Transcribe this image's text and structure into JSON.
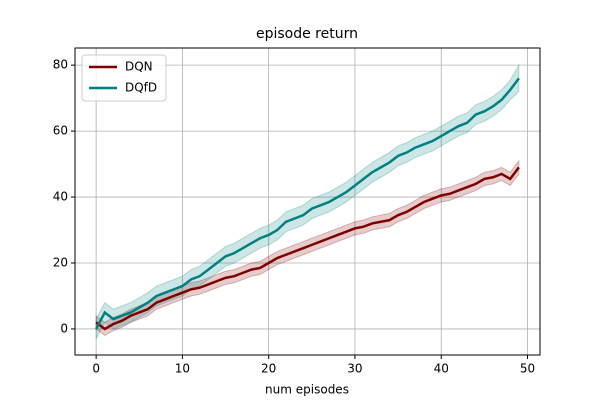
{
  "chart_data": {
    "type": "line",
    "title": "episode return",
    "xlabel": "num episodes",
    "x": [
      0,
      1,
      2,
      3,
      4,
      5,
      6,
      7,
      8,
      9,
      10,
      11,
      12,
      13,
      14,
      15,
      16,
      17,
      18,
      19,
      20,
      21,
      22,
      23,
      24,
      25,
      26,
      27,
      28,
      29,
      30,
      31,
      32,
      33,
      34,
      35,
      36,
      37,
      38,
      39,
      40,
      41,
      42,
      43,
      44,
      45,
      46,
      47,
      48,
      49
    ],
    "series": [
      {
        "name": "DQN",
        "color": "#800000",
        "values": [
          2,
          0,
          1.5,
          2.5,
          4,
          5,
          6,
          8,
          9,
          10,
          11,
          12,
          12.5,
          13.5,
          14.5,
          15.5,
          16,
          17,
          18,
          18.5,
          20,
          21.5,
          22.5,
          23.5,
          24.5,
          25.5,
          26.5,
          27.5,
          28.5,
          29.5,
          30.5,
          31,
          32,
          32.5,
          33,
          34.5,
          35.5,
          37,
          38.5,
          39.5,
          40.5,
          41,
          42,
          43,
          44,
          45.5,
          46,
          47,
          45.5,
          49
        ],
        "lower": [
          0,
          -2,
          -0.5,
          0.5,
          2,
          3,
          4,
          6,
          7,
          8,
          9,
          10,
          10.5,
          11.5,
          12.5,
          13.5,
          14,
          15,
          16,
          16.5,
          18,
          19.5,
          20.5,
          21.5,
          22.5,
          23.5,
          24.5,
          25.5,
          26.5,
          27.5,
          28.5,
          29,
          30,
          30.5,
          31,
          32.5,
          33.5,
          35,
          36.5,
          37.5,
          38.5,
          39,
          40,
          41,
          42,
          43.5,
          44,
          45,
          43.5,
          47
        ],
        "upper": [
          4,
          2,
          3.5,
          4.5,
          6,
          7,
          8,
          10,
          11,
          12,
          13,
          14,
          14.5,
          15.5,
          16.5,
          17.5,
          18,
          19,
          20,
          20.5,
          22,
          23.5,
          24.5,
          25.5,
          26.5,
          27.5,
          28.5,
          29.5,
          30.5,
          31.5,
          32.5,
          33,
          34,
          34.5,
          35,
          36.5,
          37.5,
          39,
          40.5,
          41.5,
          42.5,
          43,
          44,
          45,
          46,
          47.5,
          48,
          49,
          47.5,
          51
        ]
      },
      {
        "name": "DQfD",
        "color": "#008080",
        "values": [
          0,
          5,
          3,
          4,
          5,
          6.5,
          8,
          10,
          11,
          12,
          13,
          15,
          16,
          18,
          20,
          22,
          23,
          24.5,
          26,
          27.5,
          28.5,
          30,
          32.5,
          33.5,
          34.5,
          36.5,
          37.5,
          38.5,
          40,
          41.5,
          43.5,
          45.5,
          47.5,
          49,
          50.5,
          52.5,
          53.5,
          55,
          56,
          57,
          58.5,
          60,
          61.5,
          62.5,
          65,
          66,
          67.5,
          69.5,
          72.5,
          76
        ],
        "lower": [
          -3,
          2,
          0,
          1,
          2,
          3.5,
          5,
          7,
          8,
          9,
          10,
          12,
          13,
          15,
          17,
          19,
          20,
          21.5,
          23,
          24.5,
          25.5,
          27,
          29.5,
          30.5,
          31.5,
          33.5,
          34.5,
          35.5,
          37,
          38.5,
          40.5,
          42.5,
          44.5,
          46,
          47.5,
          49.5,
          50.5,
          52,
          53,
          54,
          55.5,
          57,
          58.5,
          59.5,
          62,
          63,
          64.5,
          66.5,
          69.5,
          72
        ],
        "upper": [
          3,
          8,
          6,
          7,
          8,
          9.5,
          11,
          13,
          14,
          15,
          16,
          18,
          19,
          21,
          23,
          25,
          26,
          27.5,
          29,
          30.5,
          31.5,
          33,
          35.5,
          36.5,
          37.5,
          39.5,
          40.5,
          41.5,
          43,
          44.5,
          46.5,
          48.5,
          50.5,
          52,
          53.5,
          55.5,
          56.5,
          58,
          59,
          60,
          61.5,
          63,
          64.5,
          65.5,
          68,
          69,
          70.5,
          72.5,
          75.5,
          80
        ]
      }
    ],
    "xlim": [
      -2.45,
      51.45
    ],
    "ylim": [
      -7.9,
      85.2
    ],
    "xticks": [
      0,
      10,
      20,
      30,
      40,
      50
    ],
    "yticks": [
      0,
      20,
      40,
      60,
      80
    ],
    "grid": true,
    "legend": "upper left"
  }
}
